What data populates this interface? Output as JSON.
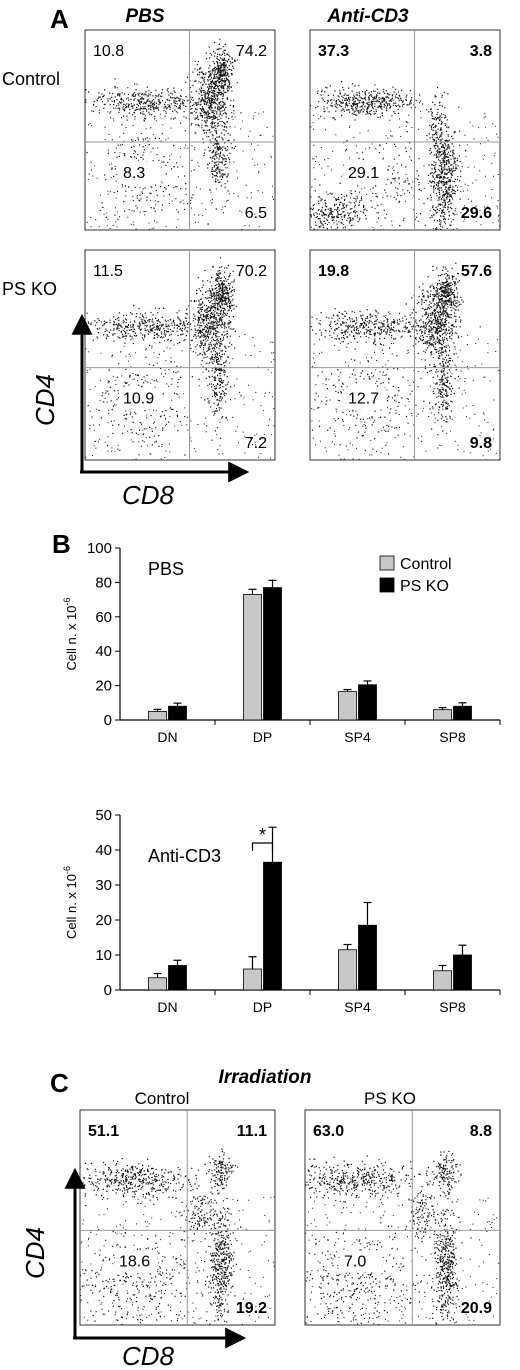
{
  "panels": {
    "a": "A",
    "b": "B",
    "c": "C"
  },
  "panel_a": {
    "col_titles": [
      "PBS",
      "Anti-CD3"
    ],
    "row_labels": [
      "Control",
      "PS KO"
    ],
    "axis_x": "CD8",
    "axis_y": "CD4",
    "plots": [
      {
        "ul": "10.8",
        "ur": "74.2",
        "ll": "8.3",
        "lr": "6.5",
        "bold": [
          false,
          false,
          false,
          false
        ]
      },
      {
        "ul": "37.3",
        "ur": "3.8",
        "ll": "29.1",
        "lr": "29.6",
        "bold": [
          true,
          true,
          false,
          true
        ]
      },
      {
        "ul": "11.5",
        "ur": "70.2",
        "ll": "10.9",
        "lr": "7.2",
        "bold": [
          false,
          false,
          false,
          false
        ]
      },
      {
        "ul": "19.8",
        "ur": "57.6",
        "ll": "12.7",
        "lr": "9.8",
        "bold": [
          true,
          true,
          false,
          true
        ]
      }
    ]
  },
  "chart_data": [
    {
      "type": "bar",
      "title": "PBS",
      "ylabel": "Cell n. x 10-6",
      "ylabel_main": "Cell n. x 10",
      "ylabel_exp": "-6",
      "categories": [
        "DN",
        "DP",
        "SP4",
        "SP8"
      ],
      "ylim": [
        0,
        100
      ],
      "yticks": [
        0,
        20,
        40,
        60,
        80,
        100
      ],
      "legend": "top-right",
      "series": [
        {
          "name": "Control",
          "values": [
            5,
            73,
            16.5,
            6
          ],
          "errors": [
            1.2,
            3.0,
            1.2,
            1.2
          ],
          "color": "#c8c8c8"
        },
        {
          "name": "PS KO",
          "values": [
            8,
            77,
            20.5,
            8
          ],
          "errors": [
            1.8,
            4.2,
            2.2,
            2.0
          ],
          "color": "#000000"
        }
      ]
    },
    {
      "type": "bar",
      "title": "Anti-CD3",
      "ylabel": "Cell n. x 10-6",
      "ylabel_main": "Cell n. x 10",
      "ylabel_exp": "-6",
      "categories": [
        "DN",
        "DP",
        "SP4",
        "SP8"
      ],
      "ylim": [
        0,
        50
      ],
      "yticks": [
        0,
        10,
        20,
        30,
        40,
        50
      ],
      "annotation": "*",
      "series": [
        {
          "name": "Control",
          "values": [
            3.5,
            6,
            11.5,
            5.5
          ],
          "errors": [
            1.2,
            3.5,
            1.5,
            1.5
          ],
          "color": "#c8c8c8"
        },
        {
          "name": "PS KO",
          "values": [
            7,
            36.5,
            18.5,
            10
          ],
          "errors": [
            1.5,
            10,
            6.5,
            2.8
          ],
          "color": "#000000"
        }
      ]
    }
  ],
  "panel_c": {
    "title": "Irradiation",
    "axis_x": "CD8",
    "axis_y": "CD4",
    "plots": [
      {
        "header": "Control",
        "ul": "51.1",
        "ur": "11.1",
        "ll": "18.6",
        "lr": "19.2",
        "bold": [
          true,
          true,
          false,
          true
        ]
      },
      {
        "header": "PS KO",
        "ul": "63.0",
        "ur": "8.8",
        "ll": "7.0",
        "lr": "20.9",
        "bold": [
          true,
          true,
          false,
          true
        ]
      }
    ]
  }
}
